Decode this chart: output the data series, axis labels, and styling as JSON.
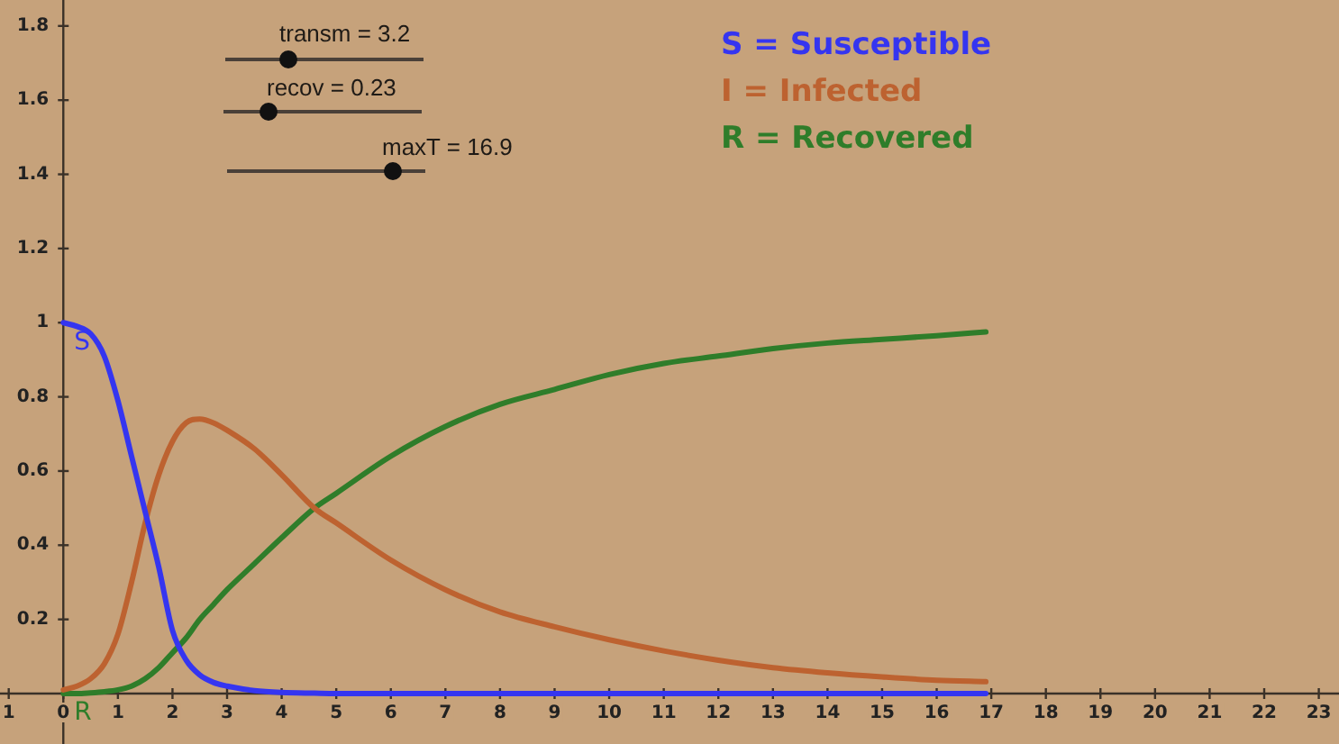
{
  "chart_data": {
    "type": "line",
    "x": [
      0,
      0.25,
      0.5,
      0.75,
      1,
      1.25,
      1.5,
      1.75,
      2,
      2.25,
      2.5,
      2.75,
      3,
      3.5,
      4,
      4.6,
      5,
      6,
      7,
      8,
      9,
      10,
      11,
      12,
      13,
      14,
      15,
      16,
      16.9
    ],
    "series": [
      {
        "name": "S = Susceptible",
        "color": "#3535f0",
        "values": [
          1,
          0.99,
          0.97,
          0.91,
          0.79,
          0.64,
          0.49,
          0.34,
          0.17,
          0.09,
          0.05,
          0.03,
          0.02,
          0.008,
          0.003,
          0.001,
          0,
          0,
          0,
          0,
          0,
          0,
          0,
          0,
          0,
          0,
          0,
          0,
          0
        ]
      },
      {
        "name": "I = Infected",
        "color": "#bd6230",
        "values": [
          0.01,
          0.02,
          0.04,
          0.08,
          0.16,
          0.3,
          0.46,
          0.59,
          0.68,
          0.73,
          0.74,
          0.73,
          0.71,
          0.66,
          0.59,
          0.5,
          0.46,
          0.36,
          0.28,
          0.22,
          0.18,
          0.145,
          0.115,
          0.09,
          0.07,
          0.056,
          0.045,
          0.036,
          0.032
        ]
      },
      {
        "name": "R = Recovered",
        "color": "#2f7d2a",
        "values": [
          0,
          0,
          0.002,
          0.005,
          0.01,
          0.02,
          0.04,
          0.07,
          0.11,
          0.15,
          0.2,
          0.24,
          0.28,
          0.35,
          0.42,
          0.5,
          0.54,
          0.64,
          0.72,
          0.78,
          0.82,
          0.86,
          0.89,
          0.91,
          0.93,
          0.945,
          0.955,
          0.965,
          0.975
        ]
      }
    ],
    "xlim": [
      -1.16,
      23.37
    ],
    "ylim": [
      -0.136,
      1.87
    ],
    "xticks": [
      {
        "value": -1,
        "label": "1"
      },
      0,
      1,
      2,
      3,
      4,
      5,
      6,
      7,
      8,
      9,
      10,
      11,
      12,
      13,
      14,
      15,
      16,
      17,
      18,
      19,
      20,
      21,
      22,
      23
    ],
    "yticks": [
      0.2,
      0.4,
      0.6,
      0.8,
      1,
      1.2,
      1.4,
      1.6,
      1.8
    ],
    "grid": false,
    "legend": "top",
    "marker": "none",
    "line_style": "solid",
    "annotations": [
      "transm = 3.2",
      "recov = 0.23",
      "maxT = 16.9",
      {
        "text": "S",
        "x": 0,
        "y": 1
      },
      {
        "text": "R",
        "x": 0,
        "y": 0
      }
    ]
  }
}
